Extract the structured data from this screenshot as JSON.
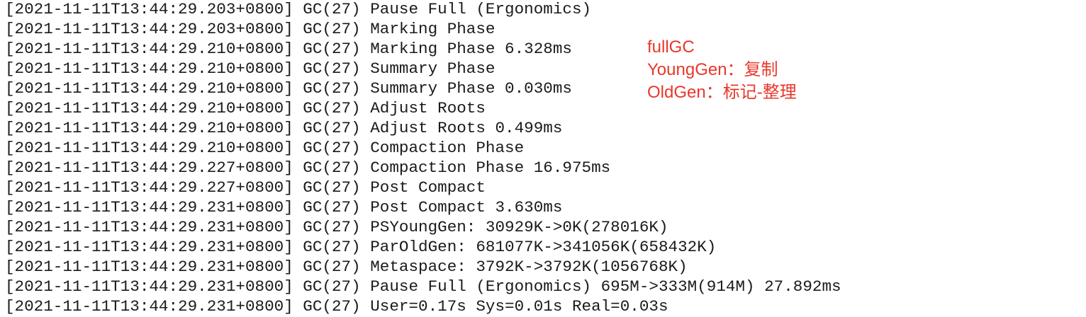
{
  "log": {
    "lines": [
      "[2021-11-11T13:44:29.203+0800] GC(27) Pause Full (Ergonomics)",
      "[2021-11-11T13:44:29.203+0800] GC(27) Marking Phase",
      "[2021-11-11T13:44:29.210+0800] GC(27) Marking Phase 6.328ms",
      "[2021-11-11T13:44:29.210+0800] GC(27) Summary Phase",
      "[2021-11-11T13:44:29.210+0800] GC(27) Summary Phase 0.030ms",
      "[2021-11-11T13:44:29.210+0800] GC(27) Adjust Roots",
      "[2021-11-11T13:44:29.210+0800] GC(27) Adjust Roots 0.499ms",
      "[2021-11-11T13:44:29.210+0800] GC(27) Compaction Phase",
      "[2021-11-11T13:44:29.227+0800] GC(27) Compaction Phase 16.975ms",
      "[2021-11-11T13:44:29.227+0800] GC(27) Post Compact",
      "[2021-11-11T13:44:29.231+0800] GC(27) Post Compact 3.630ms",
      "[2021-11-11T13:44:29.231+0800] GC(27) PSYoungGen: 30929K->0K(278016K)",
      "[2021-11-11T13:44:29.231+0800] GC(27) ParOldGen: 681077K->341056K(658432K)",
      "[2021-11-11T13:44:29.231+0800] GC(27) Metaspace: 3792K->3792K(1056768K)",
      "[2021-11-11T13:44:29.231+0800] GC(27) Pause Full (Ergonomics) 695M->333M(914M) 27.892ms",
      "[2021-11-11T13:44:29.231+0800] GC(27) User=0.17s Sys=0.01s Real=0.03s"
    ]
  },
  "annotation": {
    "lines": [
      "fullGC",
      "YoungGen：复制",
      "OldGen：标记-整理"
    ]
  }
}
